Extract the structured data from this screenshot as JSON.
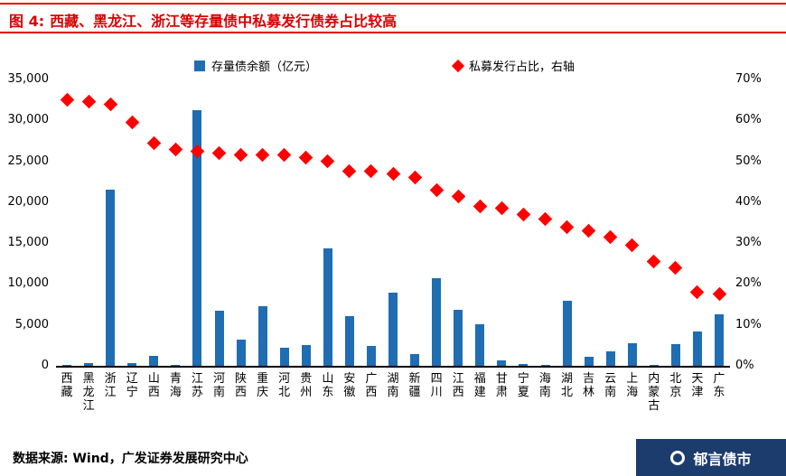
{
  "title": {
    "figure_label": "图 4:",
    "text": "西藏、黑龙江、浙江等存量债中私募发行债券占比较高"
  },
  "colors": {
    "bar": "#1f6db2",
    "diamond": "#ff0000",
    "title_red": "#d90000",
    "rule_red": "#e60000",
    "badge_bg": "#1c3c6e"
  },
  "chart_data": {
    "type": "bar",
    "subtype": "combo-bar-with-scatter-diamond-right-axis",
    "categories": [
      "西藏",
      "黑龙江",
      "浙江",
      "辽宁",
      "山西",
      "青海",
      "江苏",
      "河南",
      "陕西",
      "重庆",
      "河北",
      "贵州",
      "山东",
      "安徽",
      "广西",
      "湖南",
      "新疆",
      "四川",
      "江西",
      "福建",
      "甘肃",
      "宁夏",
      "海南",
      "湖北",
      "吉林",
      "云南",
      "上海",
      "内蒙古",
      "北京",
      "天津",
      "广东"
    ],
    "series": [
      {
        "name": "存量债余额（亿元）",
        "type": "bar",
        "axis": "left",
        "color": "#1f6db2",
        "values": [
          120,
          350,
          21500,
          350,
          1200,
          100,
          31300,
          6700,
          3200,
          7300,
          2200,
          2500,
          14400,
          6100,
          2400,
          8900,
          1400,
          10700,
          6900,
          5100,
          700,
          250,
          120,
          7900,
          1100,
          1800,
          2800,
          100,
          2700,
          4200,
          6300
        ]
      },
      {
        "name": "私募发行占比，右轴",
        "type": "scatter",
        "marker": "diamond",
        "axis": "right",
        "color": "#ff0000",
        "values": [
          65,
          64.5,
          64,
          59.5,
          54.5,
          53,
          52.5,
          52,
          51.5,
          51.5,
          51.5,
          51,
          50,
          47.5,
          47.5,
          47,
          46,
          43,
          41.5,
          39,
          38.5,
          37,
          36,
          34,
          33,
          31.5,
          29.5,
          25.5,
          24,
          18,
          17.5
        ]
      }
    ],
    "left_axis": {
      "min": 0,
      "max": 35000,
      "step": 5000,
      "ticks": [
        "0",
        "5,000",
        "10,000",
        "15,000",
        "20,000",
        "25,000",
        "30,000",
        "35,000"
      ]
    },
    "right_axis": {
      "min": 0,
      "max": 70,
      "step": 10,
      "unit": "%",
      "ticks": [
        "0%",
        "10%",
        "20%",
        "30%",
        "40%",
        "50%",
        "60%",
        "70%"
      ]
    },
    "grid": false,
    "legend_position": "top"
  },
  "footer": {
    "source": "数据来源: Wind，广发证券发展研究中心"
  },
  "badge": {
    "text": "郁言债市"
  }
}
